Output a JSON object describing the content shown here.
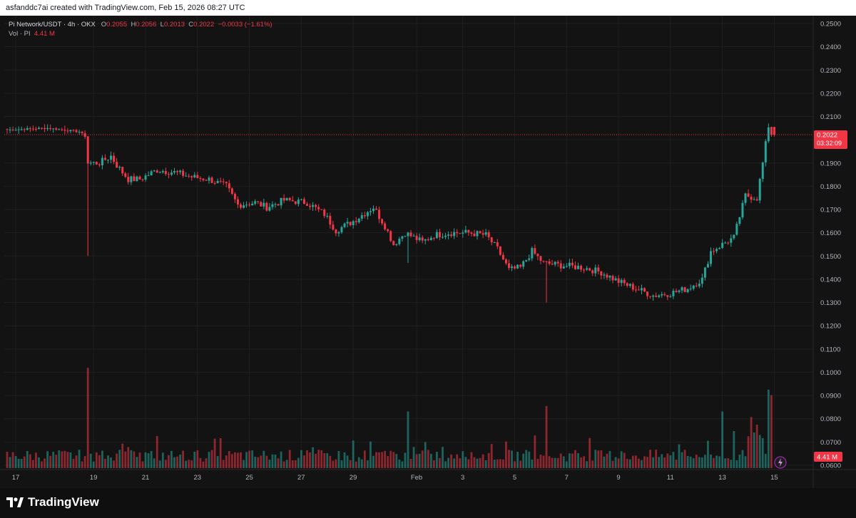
{
  "header": {
    "attribution": "asfanddc7ai created with TradingView.com, Feb 15, 2026 08:27 UTC"
  },
  "legend": {
    "symbol": "Pi Network/USDT · 4h · OKX",
    "open_label": "O",
    "open": "0.2055",
    "high_label": "H",
    "high": "0.2056",
    "low_label": "L",
    "low": "0.2013",
    "close_label": "C",
    "close": "0.2022",
    "change": "−0.0033 (−1.61%)",
    "volume_label": "Vol · PI",
    "volume": "4.41 M"
  },
  "price_label": {
    "price": "0.2022",
    "countdown": "03:32:09",
    "volume_tag": "4.41 M"
  },
  "footer": {
    "brand": "TradingView"
  },
  "colors": {
    "up": "#26a69a",
    "down": "#f23645",
    "background": "#131313",
    "grid": "#1f1f1f"
  },
  "chart_data": {
    "type": "candlestick",
    "title": "Pi Network/USDT · 4h · OKX",
    "y_axis": {
      "min": 0.06,
      "max": 0.25,
      "ticks": [
        "0.2500",
        "0.2400",
        "0.2300",
        "0.2200",
        "0.2100",
        "0.2000",
        "0.1900",
        "0.1800",
        "0.1700",
        "0.1600",
        "0.1500",
        "0.1400",
        "0.1300",
        "0.1200",
        "0.1100",
        "0.1000",
        "0.0900",
        "0.0800",
        "0.0700",
        "0.0600"
      ]
    },
    "x_axis": {
      "tick_labels": [
        "17",
        "19",
        "21",
        "23",
        "25",
        "27",
        "29",
        "Feb",
        "3",
        "5",
        "7",
        "9",
        "11",
        "13",
        "15"
      ]
    },
    "last_close": 0.2022,
    "volume_unit": "M",
    "series": [
      {
        "name": "Pi Network/USDT",
        "anchors": [
          [
            0,
            0.2043
          ],
          [
            14,
            0.205
          ],
          [
            25,
            0.2035
          ],
          [
            27,
            0.2015
          ],
          [
            28,
            0.19
          ],
          [
            32,
            0.19
          ],
          [
            36,
            0.193
          ],
          [
            38,
            0.189
          ],
          [
            42,
            0.183
          ],
          [
            46,
            0.183
          ],
          [
            52,
            0.187
          ],
          [
            58,
            0.186
          ],
          [
            64,
            0.184
          ],
          [
            70,
            0.183
          ],
          [
            76,
            0.18
          ],
          [
            80,
            0.172
          ],
          [
            86,
            0.173
          ],
          [
            90,
            0.171
          ],
          [
            96,
            0.174
          ],
          [
            104,
            0.173
          ],
          [
            110,
            0.168
          ],
          [
            114,
            0.161
          ],
          [
            120,
            0.165
          ],
          [
            127,
            0.171
          ],
          [
            131,
            0.163
          ],
          [
            134,
            0.155
          ],
          [
            138,
            0.16
          ],
          [
            144,
            0.156
          ],
          [
            148,
            0.159
          ],
          [
            154,
            0.16
          ],
          [
            160,
            0.16
          ],
          [
            166,
            0.159
          ],
          [
            170,
            0.153
          ],
          [
            174,
            0.144
          ],
          [
            178,
            0.145
          ],
          [
            182,
            0.152
          ],
          [
            186,
            0.147
          ],
          [
            192,
            0.146
          ],
          [
            200,
            0.145
          ],
          [
            206,
            0.143
          ],
          [
            212,
            0.139
          ],
          [
            218,
            0.136
          ],
          [
            224,
            0.133
          ],
          [
            230,
            0.134
          ],
          [
            236,
            0.136
          ],
          [
            241,
            0.14
          ],
          [
            244,
            0.152
          ],
          [
            248,
            0.155
          ],
          [
            252,
            0.158
          ],
          [
            256,
            0.176
          ],
          [
            260,
            0.175
          ],
          [
            262,
            0.19
          ],
          [
            264,
            0.206
          ],
          [
            266,
            0.2022
          ]
        ]
      }
    ]
  }
}
